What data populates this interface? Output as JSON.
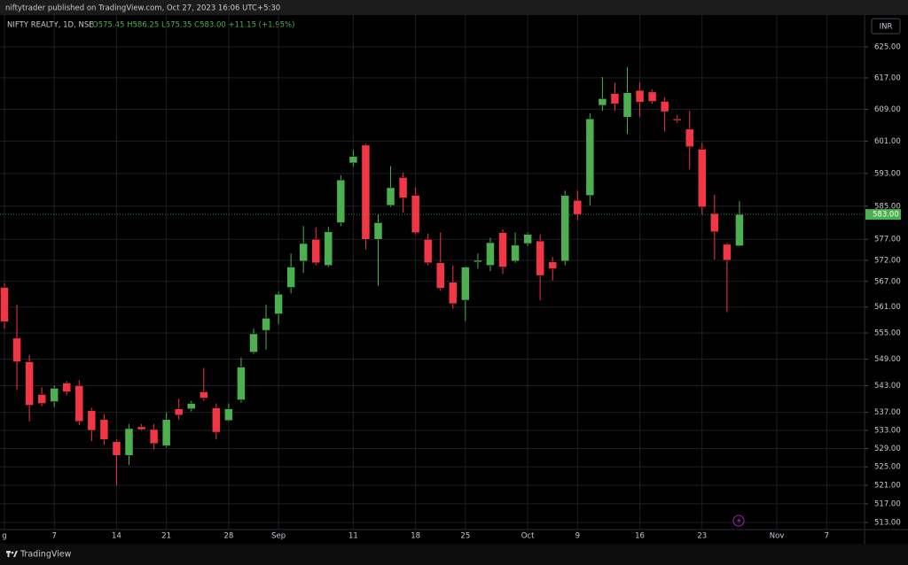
{
  "header": {
    "publisher": "niftytrader published on TradingView.com, Oct 27, 2023 16:06 UTC+5:30",
    "brand": "TradingView"
  },
  "chart_data": {
    "type": "candlestick",
    "symbol": "NIFTY REALTY, 1D, NSE",
    "ohlc_legend": "O575.45 H586.25 L575.35 C583.00 +11.15 (+1.95%)",
    "currency": "INR",
    "up_color": "#4caf50",
    "down_color": "#f23645",
    "grid": true,
    "log_scale": true,
    "last_price": {
      "value": 583,
      "label": "583.00"
    },
    "categories": [
      "g",
      null,
      null,
      null,
      "7",
      null,
      null,
      null,
      null,
      "14",
      null,
      null,
      null,
      "21",
      null,
      null,
      null,
      null,
      "28",
      null,
      null,
      null,
      "Sep",
      null,
      null,
      null,
      null,
      null,
      "11",
      null,
      null,
      null,
      null,
      "18",
      null,
      null,
      null,
      "25",
      null,
      null,
      null,
      null,
      "Oct",
      null,
      null,
      null,
      "9",
      null,
      null,
      null,
      null,
      "16",
      null,
      null,
      null,
      null,
      "23",
      null,
      null,
      null,
      null,
      null,
      "Nov",
      null,
      null,
      null,
      "7"
    ],
    "open": [
      565.6,
      553.8,
      548.4,
      541,
      539.4,
      543.6,
      543,
      537.4,
      535.4,
      530.5,
      527.5,
      533.8,
      533.2,
      529.6,
      537.8,
      537.8,
      541.6,
      538,
      535.2,
      539.8,
      550.6,
      555.6,
      559.4,
      565.6,
      571.8,
      577,
      570.8,
      581,
      595.6,
      600,
      577,
      585.2,
      592,
      587.6,
      577,
      571.4,
      566.8,
      562.6,
      571.6,
      570.8,
      578.6,
      571.8,
      576,
      576.6,
      571.6,
      571.8,
      586.4,
      587.6,
      610,
      613,
      607,
      613.8,
      613.4,
      611,
      606.6,
      604,
      599,
      583.2,
      575.8,
      575.45,
      null,
      null,
      null,
      null,
      null,
      null,
      null
    ],
    "high": [
      566.5,
      561.6,
      550,
      542.6,
      543,
      544,
      544.2,
      538,
      536.6,
      531,
      534.4,
      534.4,
      534.4,
      537,
      540,
      539.6,
      547,
      539,
      539,
      549.4,
      556,
      561.6,
      564.6,
      573.6,
      580.2,
      579.8,
      580,
      592.6,
      598.8,
      600.4,
      583,
      594.8,
      593.2,
      589.6,
      578.4,
      578.6,
      570.8,
      570.6,
      573.6,
      577.4,
      579.4,
      578.6,
      578.6,
      578.2,
      572.8,
      588.8,
      588.8,
      608,
      617.2,
      615.8,
      619.8,
      615.8,
      614,
      612,
      607.6,
      608.6,
      600.6,
      587.8,
      576.2,
      586.25,
      null,
      null,
      null,
      null,
      null,
      null,
      null
    ],
    "low": [
      556,
      542,
      535,
      538.4,
      538.2,
      540.8,
      534.2,
      530.6,
      529.8,
      521,
      525.4,
      533,
      528.8,
      529.2,
      535.4,
      537.2,
      539.6,
      531,
      535,
      539.2,
      550.2,
      551.2,
      557,
      564.2,
      569,
      570.8,
      570.4,
      580.2,
      594.6,
      574.6,
      566,
      584.8,
      583.4,
      578.2,
      570.8,
      564.8,
      560.6,
      557.8,
      570,
      569.4,
      568.8,
      571.4,
      575.4,
      562.6,
      567.2,
      570.8,
      581.6,
      585.2,
      608.6,
      608.6,
      602.8,
      607,
      610.4,
      603.4,
      605.6,
      594,
      583,
      572.2,
      559.8,
      575.35,
      null,
      null,
      null,
      null,
      null,
      null,
      null
    ],
    "close": [
      557.6,
      548.4,
      538.6,
      539,
      542.4,
      541.6,
      535,
      533,
      531,
      527.5,
      533.4,
      533.2,
      530.1,
      535.4,
      536.4,
      539,
      540.2,
      532.6,
      537.8,
      547.2,
      554.8,
      558.4,
      564,
      570.4,
      576,
      571.4,
      578.8,
      591.4,
      597.2,
      577,
      581,
      589.5,
      587,
      578.6,
      571.4,
      565.4,
      561.8,
      570.4,
      572,
      576.2,
      570.4,
      575.6,
      578.2,
      568.4,
      570,
      587.6,
      583,
      606.6,
      611.7,
      610.4,
      613.2,
      610.8,
      611,
      608.4,
      606.2,
      599.6,
      584.8,
      578.8,
      572,
      583,
      null,
      null,
      null,
      null,
      null,
      null,
      null
    ],
    "ylim": [
      511.5,
      633.3
    ],
    "yticks": [
      {
        "value": 625,
        "label": "625.00"
      },
      {
        "value": 617,
        "label": "617.00"
      },
      {
        "value": 609,
        "label": "609.00"
      },
      {
        "value": 601,
        "label": "601.00"
      },
      {
        "value": 593,
        "label": "593.00"
      },
      {
        "value": 585,
        "label": "585.00"
      },
      {
        "value": 577,
        "label": "577.00"
      },
      {
        "value": 572,
        "label": "572.00"
      },
      {
        "value": 567,
        "label": "567.00"
      },
      {
        "value": 561,
        "label": "561.00"
      },
      {
        "value": 555,
        "label": "555.00"
      },
      {
        "value": 549,
        "label": "549.00"
      },
      {
        "value": 543,
        "label": "543.00"
      },
      {
        "value": 537,
        "label": "537.00"
      },
      {
        "value": 533,
        "label": "533.00"
      },
      {
        "value": 529,
        "label": "529.00"
      },
      {
        "value": 525,
        "label": "525.00"
      },
      {
        "value": 521,
        "label": "521.00"
      },
      {
        "value": 517,
        "label": "517.00"
      },
      {
        "value": 513,
        "label": "513.00"
      }
    ]
  }
}
